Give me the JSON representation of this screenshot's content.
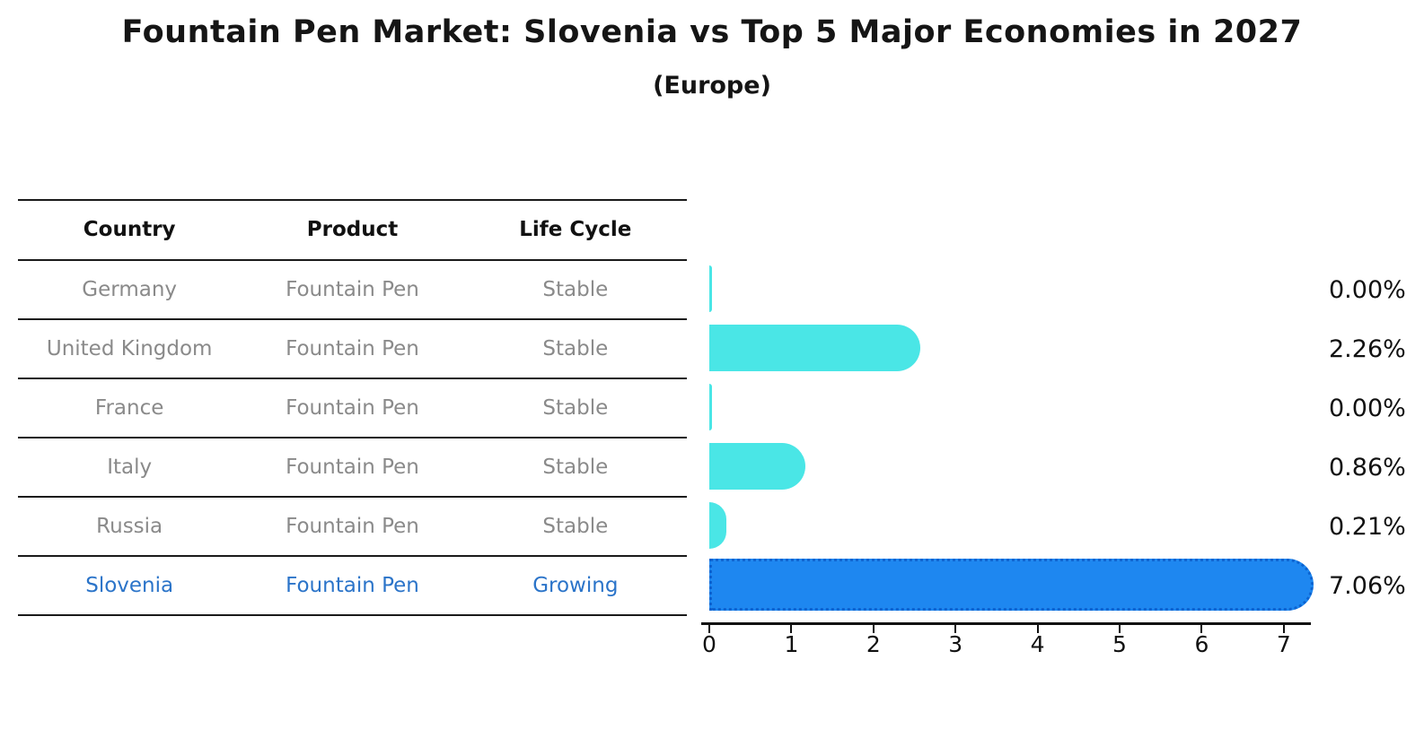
{
  "title": "Fountain Pen Market: Slovenia vs Top 5 Major Economies in 2027",
  "subtitle": "(Europe)",
  "table": {
    "headers": [
      "Country",
      "Product",
      "Life Cycle"
    ],
    "rows": [
      [
        "Germany",
        "Fountain Pen",
        "Stable"
      ],
      [
        "United Kingdom",
        "Fountain Pen",
        "Stable"
      ],
      [
        "France",
        "Fountain Pen",
        "Stable"
      ],
      [
        "Italy",
        "Fountain Pen",
        "Stable"
      ],
      [
        "Russia",
        "Fountain Pen",
        "Stable"
      ],
      [
        "Slovenia",
        "Fountain Pen",
        "Growing"
      ]
    ]
  },
  "chart_data": {
    "type": "bar",
    "orientation": "horizontal",
    "title": "Fountain Pen Market: Slovenia vs Top 5 Major Economies in 2027",
    "subtitle": "(Europe)",
    "categories": [
      "Germany",
      "United Kingdom",
      "France",
      "Italy",
      "Russia",
      "Slovenia"
    ],
    "values": [
      0.0,
      2.26,
      0.0,
      0.86,
      0.21,
      7.06
    ],
    "value_labels": [
      "0.00%",
      "2.26%",
      "0.00%",
      "0.86%",
      "0.21%",
      "7.06%"
    ],
    "x_ticks": [
      0,
      1,
      2,
      3,
      4,
      5,
      6,
      7
    ],
    "xlim": [
      0,
      7.4
    ],
    "xlabel": "",
    "ylabel": "",
    "grid": false,
    "legend": false,
    "highlight_index": 5,
    "colors": {
      "bar_default": "#4AE6E6",
      "bar_highlight": "#1E87F0",
      "bar_highlight_edge": "#0C63D0",
      "highlight_text": "#2B74C9",
      "row_text": "#8A8A8A",
      "axis": "#111111"
    }
  }
}
